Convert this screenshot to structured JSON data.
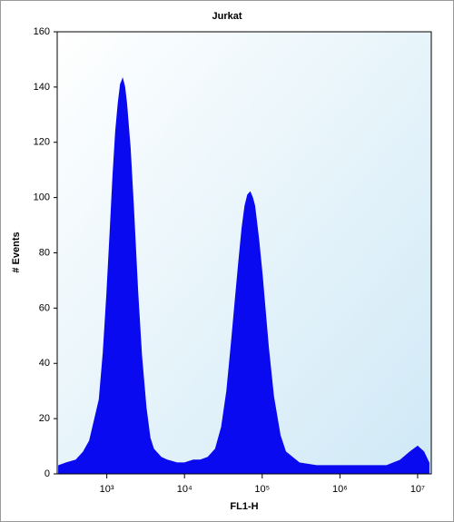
{
  "chart_data": {
    "type": "area",
    "title": "Jurkat",
    "x_label": "FL1-H",
    "y_label": "# Events",
    "xscale": "log",
    "color": "#0a0af0",
    "x": [
      240,
      300,
      400,
      500,
      600,
      700,
      800,
      900,
      1000,
      1100,
      1200,
      1300,
      1400,
      1500,
      1600,
      1700,
      1800,
      2000,
      2200,
      2500,
      2800,
      3200,
      3600,
      4000,
      5000,
      6000,
      8000,
      10000,
      13000,
      16000,
      20000,
      25000,
      30000,
      35000,
      40000,
      45000,
      50000,
      55000,
      60000,
      65000,
      70000,
      75000,
      80000,
      90000,
      100000,
      120000,
      140000,
      170000,
      200000,
      300000,
      500000,
      1000000,
      2000000,
      4000000,
      6000000,
      8000000,
      10000000,
      12000000,
      14000000
    ],
    "values": [
      3,
      4,
      5,
      8,
      12,
      20,
      27,
      44,
      65,
      87,
      108,
      124,
      134,
      141,
      143,
      140,
      134,
      118,
      97,
      66,
      43,
      24,
      13,
      9,
      6,
      5,
      4,
      4,
      5,
      5,
      6,
      9,
      17,
      30,
      47,
      63,
      77,
      89,
      97,
      101,
      102,
      100,
      97,
      85,
      72,
      46,
      28,
      14,
      8,
      4,
      3,
      3,
      3,
      3,
      5,
      8,
      10,
      8,
      4
    ],
    "xlim": [
      230,
      15000000
    ],
    "xticks": [
      {
        "value": 1000,
        "label": "10³"
      },
      {
        "value": 10000,
        "label": "10⁴"
      },
      {
        "value": 100000,
        "label": "10⁵"
      },
      {
        "value": 1000000,
        "label": "10⁶"
      },
      {
        "value": 10000000,
        "label": "10⁷"
      }
    ],
    "ylim": [
      0,
      160
    ],
    "yticks": [
      0,
      20,
      40,
      60,
      80,
      100,
      120,
      140,
      160
    ]
  }
}
